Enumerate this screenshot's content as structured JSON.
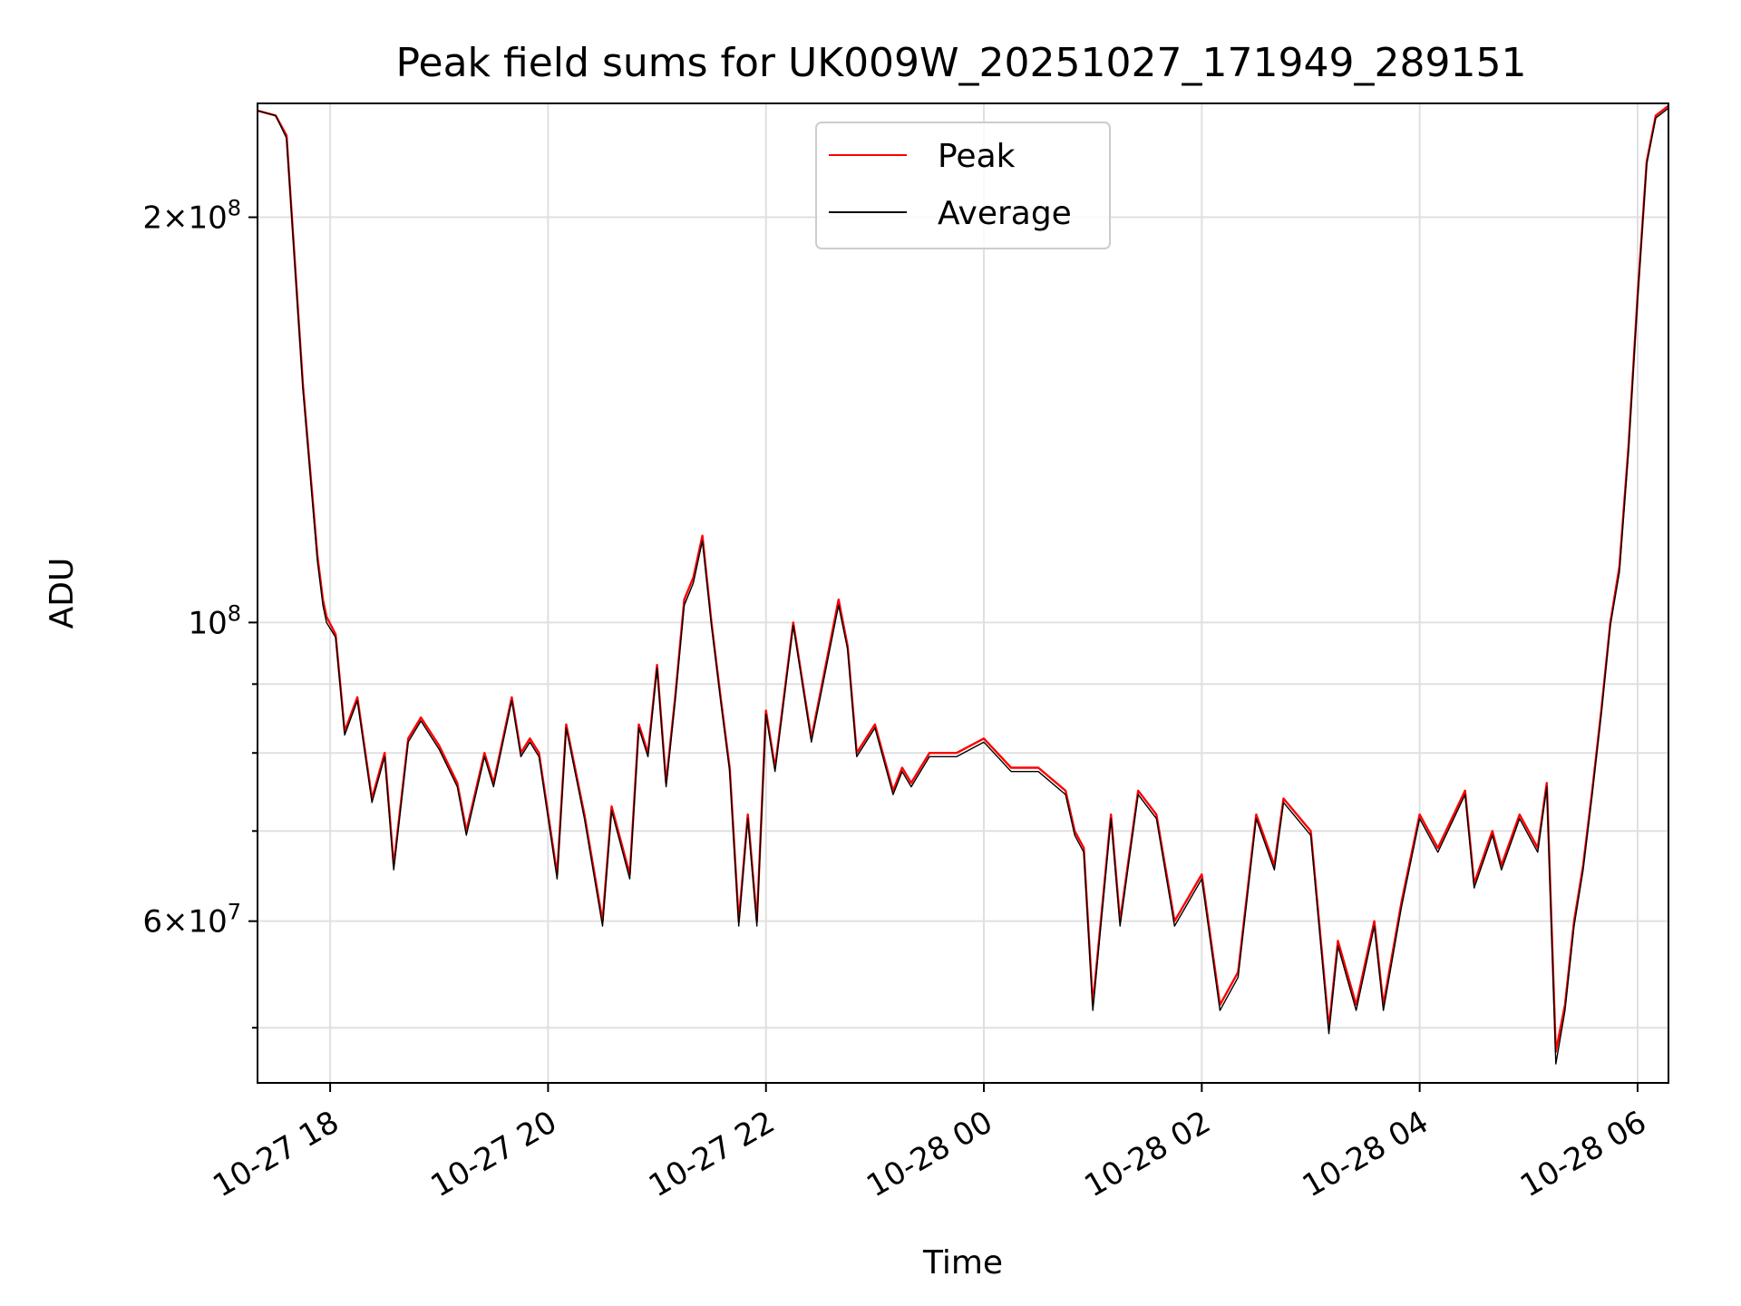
{
  "chart_data": {
    "type": "line",
    "title": "Peak field sums for UK009W_20251027_171949_289151",
    "xlabel": "Time",
    "ylabel": "ADU",
    "y_scale": "log",
    "ylim": [
      45500000,
      243000000
    ],
    "xlim": [
      "2025-10-27 17:20",
      "2025-10-28 06:17"
    ],
    "grid": true,
    "legend_position": "upper center",
    "x_ticks": [
      {
        "value": "2025-10-27 18:00",
        "label": "10-27 18"
      },
      {
        "value": "2025-10-27 20:00",
        "label": "10-27 20"
      },
      {
        "value": "2025-10-27 22:00",
        "label": "10-27 22"
      },
      {
        "value": "2025-10-28 00:00",
        "label": "10-28 00"
      },
      {
        "value": "2025-10-28 02:00",
        "label": "10-28 02"
      },
      {
        "value": "2025-10-28 04:00",
        "label": "10-28 04"
      },
      {
        "value": "2025-10-28 06:00",
        "label": "10-28 06"
      }
    ],
    "y_major_ticks": [
      {
        "value": 60000000,
        "base": "6",
        "exp": "7"
      },
      {
        "value": 100000000,
        "base": "",
        "exp": "8"
      },
      {
        "value": 200000000,
        "base": "2",
        "exp": "8"
      }
    ],
    "y_minor_ticks": [
      50000000,
      70000000,
      80000000,
      90000000
    ],
    "x": [
      "2025-10-27 17:20",
      "2025-10-27 17:30",
      "2025-10-27 17:36",
      "2025-10-27 17:40",
      "2025-10-27 17:45",
      "2025-10-27 17:50",
      "2025-10-27 17:53",
      "2025-10-27 17:56",
      "2025-10-27 17:58",
      "2025-10-27 18:03",
      "2025-10-27 18:08",
      "2025-10-27 18:15",
      "2025-10-27 18:23",
      "2025-10-27 18:30",
      "2025-10-27 18:35",
      "2025-10-27 18:43",
      "2025-10-27 18:50",
      "2025-10-27 19:00",
      "2025-10-27 19:10",
      "2025-10-27 19:15",
      "2025-10-27 19:25",
      "2025-10-27 19:30",
      "2025-10-27 19:40",
      "2025-10-27 19:45",
      "2025-10-27 19:50",
      "2025-10-27 19:55",
      "2025-10-27 20:05",
      "2025-10-27 20:10",
      "2025-10-27 20:20",
      "2025-10-27 20:30",
      "2025-10-27 20:35",
      "2025-10-27 20:45",
      "2025-10-27 20:50",
      "2025-10-27 20:55",
      "2025-10-27 21:00",
      "2025-10-27 21:05",
      "2025-10-27 21:10",
      "2025-10-27 21:15",
      "2025-10-27 21:20",
      "2025-10-27 21:25",
      "2025-10-27 21:30",
      "2025-10-27 21:35",
      "2025-10-27 21:40",
      "2025-10-27 21:45",
      "2025-10-27 21:50",
      "2025-10-27 21:55",
      "2025-10-27 22:00",
      "2025-10-27 22:05",
      "2025-10-27 22:15",
      "2025-10-27 22:25",
      "2025-10-27 22:40",
      "2025-10-27 22:45",
      "2025-10-27 22:50",
      "2025-10-27 23:00",
      "2025-10-27 23:10",
      "2025-10-27 23:15",
      "2025-10-27 23:20",
      "2025-10-27 23:30",
      "2025-10-27 23:45",
      "2025-10-28 00:00",
      "2025-10-28 00:15",
      "2025-10-28 00:30",
      "2025-10-28 00:45",
      "2025-10-28 00:50",
      "2025-10-28 00:55",
      "2025-10-28 01:00",
      "2025-10-28 01:10",
      "2025-10-28 01:15",
      "2025-10-28 01:25",
      "2025-10-28 01:35",
      "2025-10-28 01:45",
      "2025-10-28 02:00",
      "2025-10-28 02:10",
      "2025-10-28 02:20",
      "2025-10-28 02:30",
      "2025-10-28 02:40",
      "2025-10-28 02:45",
      "2025-10-28 03:00",
      "2025-10-28 03:10",
      "2025-10-28 03:15",
      "2025-10-28 03:25",
      "2025-10-28 03:35",
      "2025-10-28 03:40",
      "2025-10-28 03:50",
      "2025-10-28 04:00",
      "2025-10-28 04:10",
      "2025-10-28 04:25",
      "2025-10-28 04:30",
      "2025-10-28 04:40",
      "2025-10-28 04:45",
      "2025-10-28 04:55",
      "2025-10-28 05:05",
      "2025-10-28 05:10",
      "2025-10-28 05:15",
      "2025-10-28 05:20",
      "2025-10-28 05:25",
      "2025-10-28 05:30",
      "2025-10-28 05:35",
      "2025-10-28 05:40",
      "2025-10-28 05:45",
      "2025-10-28 05:50",
      "2025-10-28 05:55",
      "2025-10-28 06:00",
      "2025-10-28 06:05",
      "2025-10-28 06:10",
      "2025-10-28 06:17"
    ],
    "series": [
      {
        "name": "Peak",
        "color": "#ff0000",
        "values": [
          240000000,
          238000000,
          230000000,
          190000000,
          150000000,
          125000000,
          112000000,
          104000000,
          101000000,
          98000000,
          83000000,
          88000000,
          74000000,
          80000000,
          66000000,
          82000000,
          85000000,
          81000000,
          76000000,
          70000000,
          80000000,
          76000000,
          88000000,
          80000000,
          82000000,
          80000000,
          65000000,
          84000000,
          72000000,
          60000000,
          73000000,
          65000000,
          84000000,
          80000000,
          93000000,
          76000000,
          88000000,
          104000000,
          108000000,
          116000000,
          100000000,
          88000000,
          78000000,
          60000000,
          72000000,
          60000000,
          86000000,
          78000000,
          100000000,
          82000000,
          104000000,
          96000000,
          80000000,
          84000000,
          75000000,
          78000000,
          76000000,
          80000000,
          80000000,
          82000000,
          78000000,
          78000000,
          75000000,
          70000000,
          68000000,
          52000000,
          72000000,
          60000000,
          75000000,
          72000000,
          60000000,
          65000000,
          52000000,
          55000000,
          72000000,
          66000000,
          74000000,
          70000000,
          50000000,
          58000000,
          52000000,
          60000000,
          52000000,
          62000000,
          72000000,
          68000000,
          75000000,
          64000000,
          70000000,
          66000000,
          72000000,
          68000000,
          76000000,
          48000000,
          52000000,
          60000000,
          66000000,
          75000000,
          86000000,
          100000000,
          110000000,
          135000000,
          175000000,
          220000000,
          238000000,
          242000000
        ]
      },
      {
        "name": "Average",
        "color": "#000000",
        "values": [
          240000000,
          238000000,
          229000000,
          189000000,
          149000000,
          124000000,
          111000000,
          103000000,
          100000000,
          97500000,
          82500000,
          87500000,
          73500000,
          79500000,
          65500000,
          81500000,
          84500000,
          80500000,
          75500000,
          69500000,
          79500000,
          75500000,
          87500000,
          79500000,
          81500000,
          79500000,
          64500000,
          83500000,
          71500000,
          59500000,
          72500000,
          64500000,
          83500000,
          79500000,
          92500000,
          75500000,
          87500000,
          103000000,
          107000000,
          115000000,
          99500000,
          87500000,
          77500000,
          59500000,
          71500000,
          59500000,
          85500000,
          77500000,
          99500000,
          81500000,
          103000000,
          95500000,
          79500000,
          83500000,
          74500000,
          77500000,
          75500000,
          79500000,
          79500000,
          81500000,
          77500000,
          77500000,
          74500000,
          69500000,
          67500000,
          51500000,
          71500000,
          59500000,
          74500000,
          71500000,
          59500000,
          64500000,
          51500000,
          54500000,
          71500000,
          65500000,
          73500000,
          69500000,
          49500000,
          57500000,
          51500000,
          59500000,
          51500000,
          61500000,
          71500000,
          67500000,
          74500000,
          63500000,
          69500000,
          65500000,
          71500000,
          67500000,
          75500000,
          47000000,
          51500000,
          59500000,
          65500000,
          74500000,
          85500000,
          99500000,
          109000000,
          134000000,
          174000000,
          219000000,
          237000000,
          241000000
        ]
      }
    ]
  }
}
